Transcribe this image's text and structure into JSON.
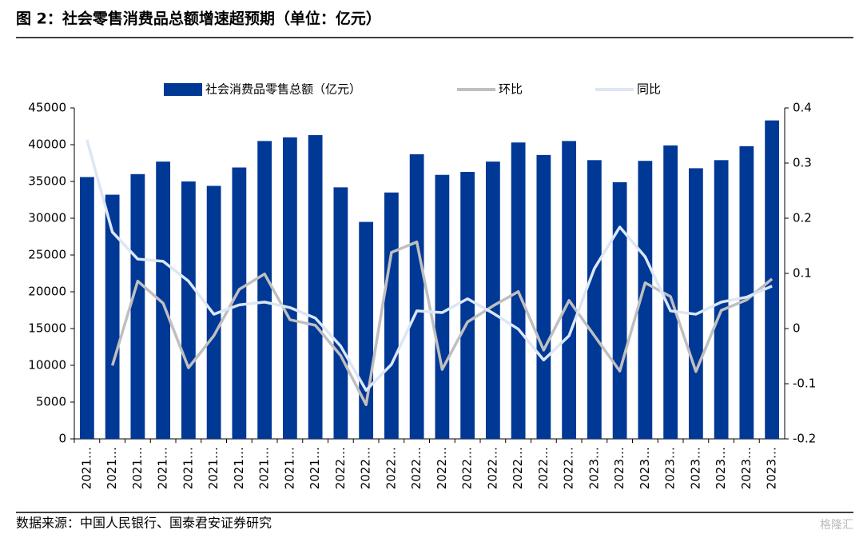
{
  "chart_data": {
    "type": "bar_line",
    "title": "图 2：社会零售消费品总额增速超预期（单位：亿元）",
    "source": "数据来源：中国人民银行、国泰君安证券研究",
    "watermark": "格隆汇",
    "categories": [
      "2021…",
      "2021…",
      "2021…",
      "2021…",
      "2021…",
      "2021…",
      "2021…",
      "2021…",
      "2021…",
      "2021…",
      "2022…",
      "2022…",
      "2022…",
      "2022…",
      "2022…",
      "2022…",
      "2022…",
      "2022…",
      "2022…",
      "2022…",
      "2023…",
      "2023…",
      "2023…",
      "2023…",
      "2023…",
      "2023…",
      "2023…",
      "2023…"
    ],
    "series": [
      {
        "name": "社会消费品零售总额（亿元）",
        "type": "bar",
        "axis": "y",
        "color": "#003896",
        "values": [
          35600,
          33200,
          36000,
          37700,
          35000,
          34400,
          36900,
          40500,
          41000,
          41300,
          34200,
          29500,
          33500,
          38700,
          35900,
          36300,
          37700,
          40300,
          38600,
          40500,
          37900,
          34900,
          37800,
          39900,
          36800,
          37900,
          39800,
          43300
        ]
      },
      {
        "name": "环比",
        "type": "line",
        "axis": "y2",
        "color": "#bfbfbf",
        "values": [
          null,
          -0.067,
          0.086,
          0.046,
          -0.071,
          -0.013,
          0.071,
          0.099,
          0.016,
          0.006,
          -0.049,
          -0.138,
          0.138,
          0.157,
          -0.074,
          0.012,
          0.041,
          0.067,
          -0.039,
          0.051,
          -0.013,
          -0.077,
          0.083,
          0.058,
          -0.078,
          0.033,
          0.052,
          0.09
        ]
      },
      {
        "name": "同比",
        "type": "line",
        "axis": "y2",
        "color": "#dce6f5",
        "values": [
          0.342,
          0.175,
          0.126,
          0.122,
          0.086,
          0.026,
          0.043,
          0.048,
          0.038,
          0.019,
          -0.032,
          -0.112,
          -0.065,
          0.032,
          0.029,
          0.054,
          0.028,
          -0.001,
          -0.057,
          -0.013,
          0.109,
          0.184,
          0.13,
          0.032,
          0.026,
          0.048,
          0.057,
          0.077
        ]
      }
    ],
    "ylim": [
      0,
      45000
    ],
    "yticks": [
      0,
      5000,
      10000,
      15000,
      20000,
      25000,
      30000,
      35000,
      40000,
      45000
    ],
    "y2lim": [
      -0.2,
      0.4
    ],
    "y2ticks": [
      -0.2,
      -0.1,
      0,
      0.1,
      0.2,
      0.3,
      0.4
    ],
    "legend": "top"
  }
}
